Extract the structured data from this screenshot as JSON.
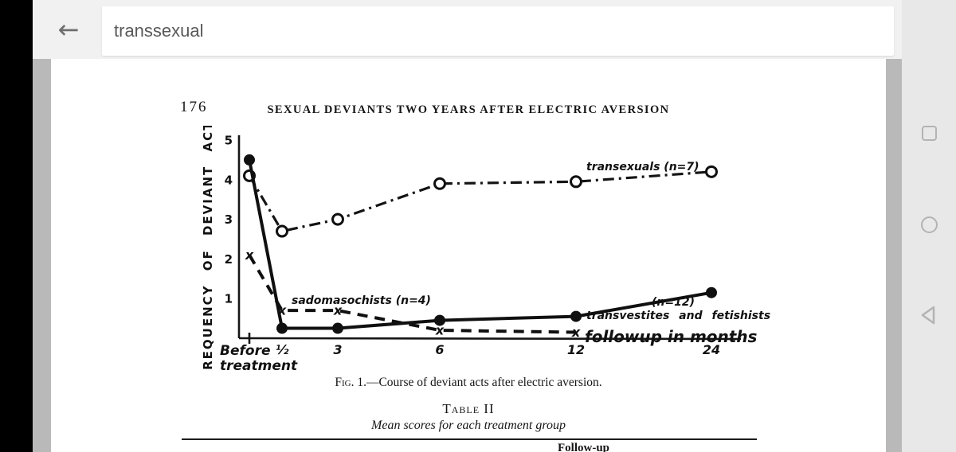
{
  "toolbar": {
    "search_value": "transsexual",
    "back_icon": "←"
  },
  "nav_bar": {
    "buttons": [
      {
        "name": "recents"
      },
      {
        "name": "home"
      },
      {
        "name": "back"
      }
    ]
  },
  "document": {
    "page_number": "176",
    "running_title": "SEXUAL DEVIANTS TWO YEARS AFTER ELECTRIC AVERSION",
    "figure_caption": {
      "label": "Fig. 1.",
      "text": "—Course of deviant acts after electric aversion."
    },
    "table_title": "Table II",
    "table_subtitle": "Mean scores for each treatment group",
    "table_partial_header": "Follow-up"
  },
  "chart_data": {
    "type": "line",
    "ylabel": "FREQUENCY OF DEVIANT ACTS",
    "xlabel": "followup in months",
    "ylim": [
      0,
      5
    ],
    "y_ticks": [
      5,
      4,
      3,
      2,
      1
    ],
    "x_months": [
      0,
      0.5,
      3,
      6,
      12,
      24
    ],
    "x_tick_labels": [
      "½",
      "3",
      "6",
      "12",
      "24"
    ],
    "before_label": [
      "Before",
      "treatment"
    ],
    "grid": false,
    "legend_position": "inline-annotations",
    "series": [
      {
        "name": "transexuals (n=7)",
        "n": 7,
        "line_style": "dash-dot",
        "marker": "open-circle",
        "values": [
          4.1,
          2.7,
          3.0,
          3.9,
          3.95,
          4.2
        ]
      },
      {
        "name": "sadomasochists (n=4)",
        "n": 4,
        "line_style": "dashed",
        "marker": "x",
        "values": [
          2.1,
          0.7,
          0.7,
          0.2,
          0.15,
          null
        ]
      },
      {
        "name": "transvestites and fetishists (n=12)",
        "n": 12,
        "line_style": "solid",
        "marker": "filled-circle",
        "values": [
          4.5,
          0.25,
          0.25,
          0.45,
          0.55,
          1.15
        ]
      }
    ],
    "annotations": {
      "series_transsexuals": "transexuals (n=7)",
      "series_sadomasochists": "sadomasochists (n=4)",
      "transvestites_n": "(n=12)",
      "series_transvestites": "transvestites and fetishists",
      "xlabel": "followup in months",
      "before_1": "Before",
      "before_2": "treatment"
    }
  }
}
